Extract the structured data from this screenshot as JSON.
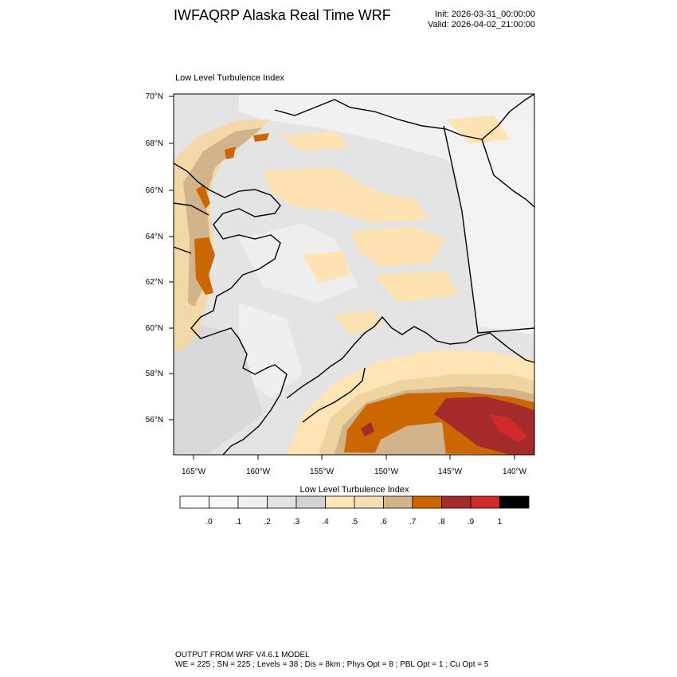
{
  "header": {
    "title": "IWFAQRP Alaska Real Time WRF",
    "init": "Init: 2026-03-31_00:00:00",
    "valid": "Valid: 2026-04-02_21:00:00"
  },
  "map": {
    "plot_title": "Low Level Turbulence Index",
    "lat_labels": [
      "70°N",
      "68°N",
      "66°N",
      "64°N",
      "62°N",
      "60°N",
      "58°N",
      "56°N"
    ],
    "lon_labels": [
      "165°W",
      "160°W",
      "155°W",
      "150°W",
      "145°W",
      "140°W"
    ],
    "colors": {
      "ocean_base": "#e6e6e6",
      "light": "#f2f2f2",
      "mid": "#d9d9d9",
      "tan_light": "#ffe4b5",
      "tan": "#f3d9a8",
      "tan_dark": "#d2b48c",
      "orange": "#cc6600",
      "red_dark": "#a52a2a",
      "red": "#d22a2a"
    }
  },
  "colorbar": {
    "title": "Low Level Turbulence Index",
    "colors": [
      "#ffffff",
      "#f8f8f8",
      "#f0f0f0",
      "#e2e2e2",
      "#d3d3d3",
      "#ffe4b5",
      "#f5deb3",
      "#d2b48c",
      "#cc6600",
      "#a52a2a",
      "#d22a2a",
      "#000000"
    ],
    "labels": [
      ".0",
      ".1",
      ".2",
      ".3",
      ".4",
      ".5",
      ".6",
      ".7",
      ".8",
      ".9",
      "1"
    ]
  },
  "footer": {
    "line1": "OUTPUT FROM WRF V4.6.1 MODEL",
    "line2": "WE = 225 ; SN = 225 ; Levels = 38 ; Dis = 8km ; Phys Opt = 8 ; PBL Opt = 1 ; Cu Opt = 5"
  }
}
